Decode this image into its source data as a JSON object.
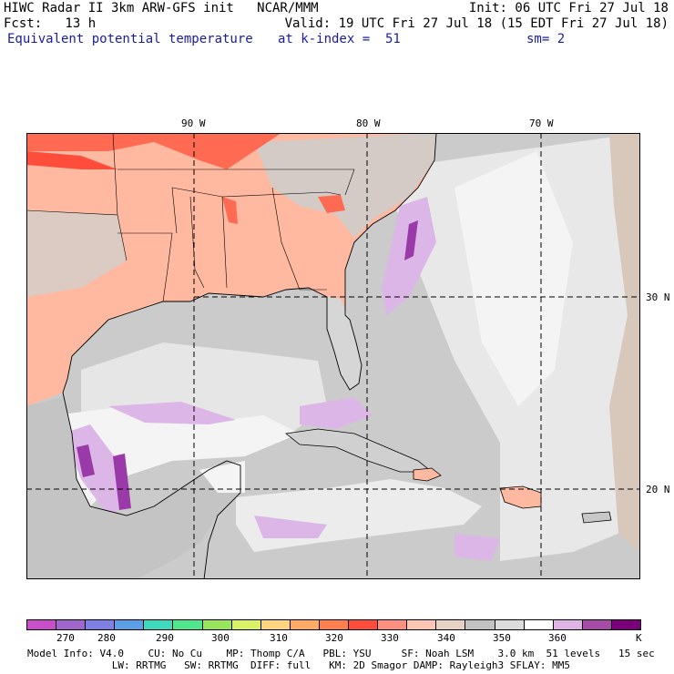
{
  "header": {
    "line1_left": "HIWC Radar II 3km ARW-GFS init   NCAR/MMM",
    "line1_right": "Init: 06 UTC Fri 27 Jul 18",
    "line2_left": "Fcst:   13 h",
    "line2_right": "Valid: 19 UTC Fri 27 Jul 18 (15 EDT Fri 27 Jul 18)",
    "field_name": "Equivalent potential temperature",
    "level": "at k-index =  51",
    "smoothing": "sm= 2"
  },
  "map": {
    "lon_labels": [
      "90 W",
      "80 W",
      "70 W"
    ],
    "lat_labels": [
      "30 N",
      "20 N"
    ],
    "colors": {
      "land_warm": "#ffb9a0",
      "hot": "#ff6a52",
      "very_hot": "#ff4d3c",
      "gray_dark": "#c2c2c2",
      "gray_light": "#dcdcdc",
      "white": "#f4f4f4",
      "lavender": "#dcb6e6",
      "violet": "#9a3aa8",
      "tan": "#d8c7bb"
    }
  },
  "colorbar": {
    "labels": [
      "270",
      "280",
      "290",
      "300",
      "310",
      "320",
      "330",
      "340",
      "350",
      "360"
    ],
    "unit": "K",
    "colors": [
      "#c94fc9",
      "#a066cc",
      "#7f7fe6",
      "#5c9fe6",
      "#3fd9bf",
      "#4fe68c",
      "#99e65c",
      "#d9f266",
      "#ffd580",
      "#ffab66",
      "#ff7f4f",
      "#ff4d3c",
      "#ff8f80",
      "#ffc7b3",
      "#e6d1c4",
      "#c2c2c2",
      "#dcdcdc",
      "#ffffff",
      "#e0b3e6",
      "#a64ca6",
      "#7a007a"
    ]
  },
  "footer": {
    "line1": "Model Info: V4.0    CU: No Cu    MP: Thomp C/A   PBL: YSU     SF: Noah LSM    3.0 km  51 levels   15 sec",
    "line2": "              LW: RRTMG   SW: RRTMG  DIFF: full   KM: 2D Smagor DAMP: Rayleigh3 SFLAY: MM5"
  }
}
